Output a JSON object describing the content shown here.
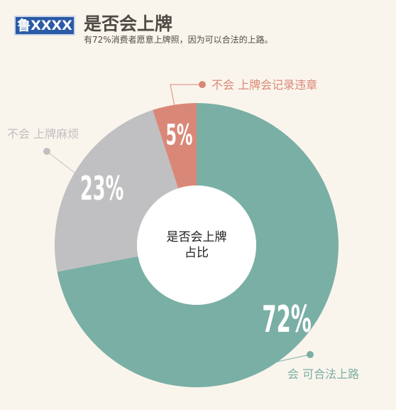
{
  "header": {
    "plate": "鲁XXXX",
    "title": "是否会上牌",
    "subtitle": "有72%消费者愿意上牌照，因为可以合法的上路。"
  },
  "chart_data": {
    "type": "pie",
    "center_label": [
      "是否会上牌",
      "占比"
    ],
    "slices": [
      {
        "label": "会  可合法上路",
        "value": 72,
        "value_label": "72%",
        "color": "#7aafa5"
      },
      {
        "label": "不会  上牌麻烦",
        "value": 23,
        "value_label": "23%",
        "color": "#c0c0c2"
      },
      {
        "label": "不会  上牌会记录违章",
        "value": 5,
        "value_label": "5%",
        "color": "#d98878"
      }
    ]
  }
}
